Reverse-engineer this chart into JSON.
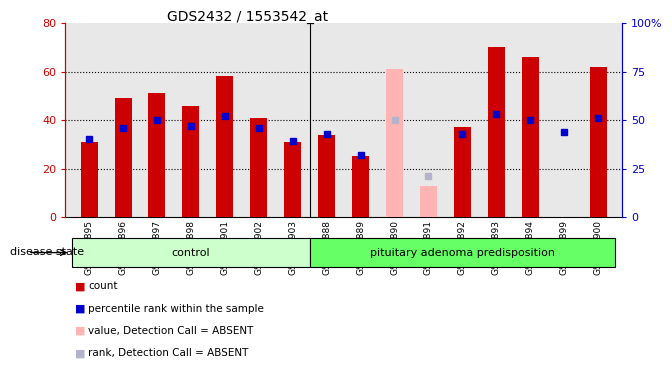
{
  "title": "GDS2432 / 1553542_at",
  "samples": [
    "GSM100895",
    "GSM100896",
    "GSM100897",
    "GSM100898",
    "GSM100901",
    "GSM100902",
    "GSM100903",
    "GSM100888",
    "GSM100889",
    "GSM100890",
    "GSM100891",
    "GSM100892",
    "GSM100893",
    "GSM100894",
    "GSM100899",
    "GSM100900"
  ],
  "bar_values": [
    31,
    49,
    51,
    46,
    58,
    41,
    31,
    34,
    25,
    61,
    13,
    37,
    70,
    66,
    null,
    62
  ],
  "dot_values": [
    40,
    46,
    50,
    47,
    52,
    46,
    39,
    43,
    32,
    50,
    21,
    43,
    53,
    50,
    44,
    51
  ],
  "absent_mask": [
    false,
    false,
    false,
    false,
    false,
    false,
    false,
    false,
    false,
    true,
    true,
    false,
    false,
    false,
    false,
    false
  ],
  "bar_color": "#cc0000",
  "bar_absent_color": "#ffb3b3",
  "dot_color": "#0000cc",
  "dot_absent_color": "#b3b3cc",
  "control_count": 7,
  "disease_count": 9,
  "control_label": "control",
  "disease_label": "pituitary adenoma predisposition",
  "control_color": "#ccffcc",
  "disease_color": "#66ff66",
  "group_label": "disease state",
  "ylim_left": [
    0,
    80
  ],
  "ylim_right": [
    0,
    100
  ],
  "yticks_left": [
    0,
    20,
    40,
    60,
    80
  ],
  "yticks_right": [
    0,
    25,
    50,
    75,
    100
  ],
  "ytick_labels_right": [
    "0",
    "25",
    "50",
    "75",
    "100%"
  ],
  "chart_bg": "#e8e8e8",
  "bar_width": 0.5,
  "legend_items": [
    {
      "color": "#cc0000",
      "label": "count"
    },
    {
      "color": "#0000cc",
      "label": "percentile rank within the sample"
    },
    {
      "color": "#ffb3b3",
      "label": "value, Detection Call = ABSENT"
    },
    {
      "color": "#b3b3cc",
      "label": "rank, Detection Call = ABSENT"
    }
  ]
}
